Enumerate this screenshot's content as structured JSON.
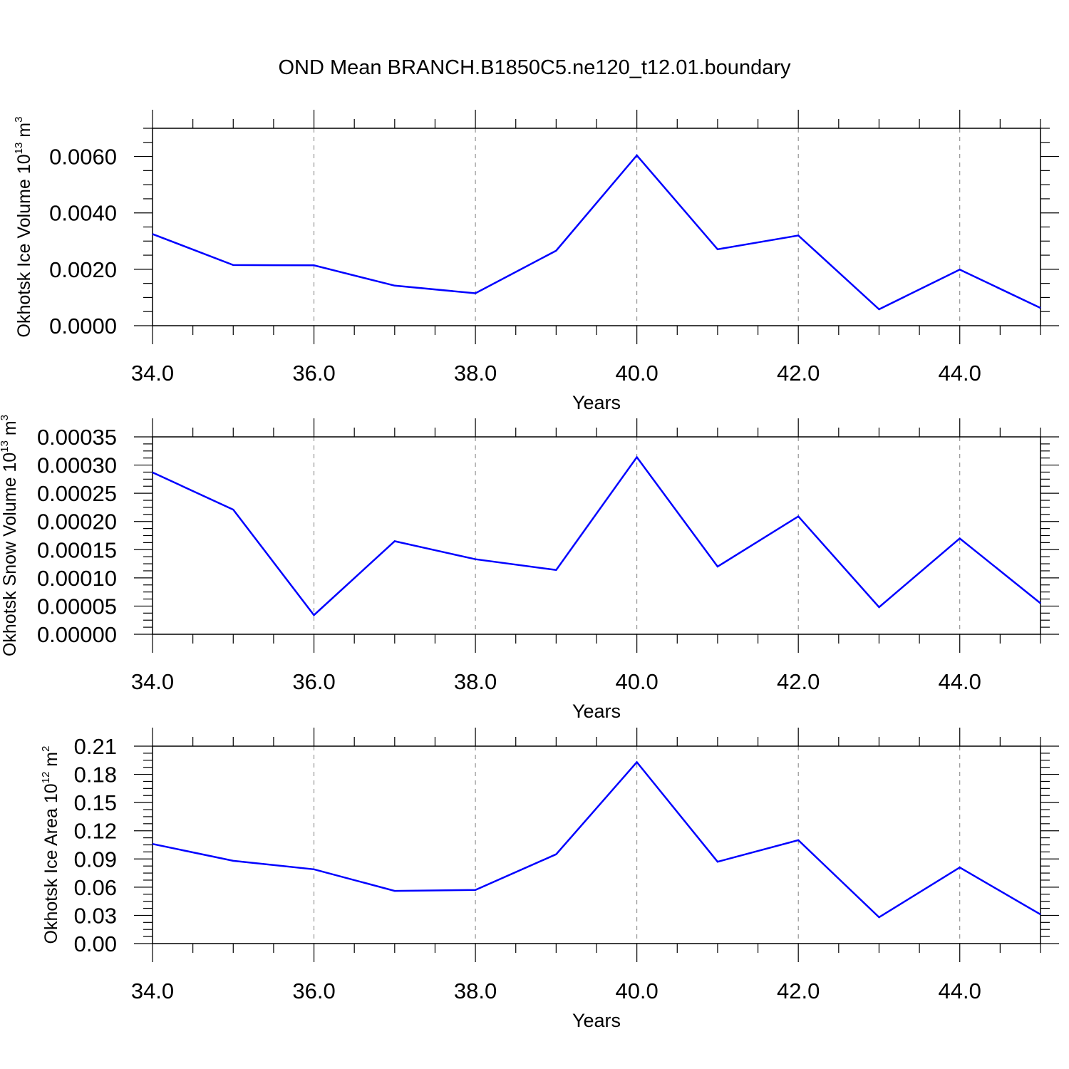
{
  "chart_data": {
    "title": "OND Mean BRANCH.B1850C5.ne120_t12.01.boundary",
    "panels": [
      {
        "type": "line",
        "ylabel": {
          "main": "Okhotsk Ice Volume 10",
          "exp": "13",
          "unit": " m",
          "unit_exp": "3"
        },
        "xlabel": "Years",
        "xlim": [
          34,
          45
        ],
        "ylim": [
          0,
          0.007
        ],
        "x_ticks": [
          "34.0",
          "36.0",
          "38.0",
          "40.0",
          "42.0",
          "44.0"
        ],
        "x_tick_values": [
          34,
          36,
          38,
          40,
          42,
          44
        ],
        "y_ticks": [
          "0.0000",
          "0.0020",
          "0.0040",
          "0.0060"
        ],
        "y_tick_values": [
          0,
          0.002,
          0.004,
          0.006
        ],
        "x": [
          34,
          35,
          36,
          37,
          38,
          39,
          40,
          41,
          42,
          43,
          44,
          45
        ],
        "y": [
          0.00325,
          0.00215,
          0.00214,
          0.00142,
          0.00115,
          0.00266,
          0.00604,
          0.00271,
          0.0032,
          0.00058,
          0.00199,
          0.00063
        ],
        "color": "#0000ff",
        "grid": "vertical dashed at major x ticks"
      },
      {
        "type": "line",
        "ylabel": {
          "main": "Okhotsk Snow Volume 10",
          "exp": "13",
          "unit": " m",
          "unit_exp": "3"
        },
        "xlabel": "Years",
        "xlim": [
          34,
          45
        ],
        "ylim": [
          0,
          0.00035
        ],
        "x_ticks": [
          "34.0",
          "36.0",
          "38.0",
          "40.0",
          "42.0",
          "44.0"
        ],
        "x_tick_values": [
          34,
          36,
          38,
          40,
          42,
          44
        ],
        "y_ticks": [
          "0.00000",
          "0.00005",
          "0.00010",
          "0.00015",
          "0.00020",
          "0.00025",
          "0.00030",
          "0.00035"
        ],
        "y_tick_values": [
          0,
          5e-05,
          0.0001,
          0.00015,
          0.0002,
          0.00025,
          0.0003,
          0.00035
        ],
        "x": [
          34,
          35,
          36,
          37,
          38,
          39,
          40,
          41,
          42,
          43,
          44,
          45
        ],
        "y": [
          0.000287,
          0.000221,
          3.4e-05,
          0.000165,
          0.000133,
          0.000114,
          0.000314,
          0.00012,
          0.000209,
          4.8e-05,
          0.00017,
          5.5e-05
        ],
        "color": "#0000ff",
        "grid": "vertical dashed at major x ticks"
      },
      {
        "type": "line",
        "ylabel": {
          "main": "Okhotsk Ice Area 10",
          "exp": "12",
          "unit": " m",
          "unit_exp": "2"
        },
        "xlabel": "Years",
        "xlim": [
          34,
          45
        ],
        "ylim": [
          0,
          0.21
        ],
        "x_ticks": [
          "34.0",
          "36.0",
          "38.0",
          "40.0",
          "42.0",
          "44.0"
        ],
        "x_tick_values": [
          34,
          36,
          38,
          40,
          42,
          44
        ],
        "y_ticks": [
          "0.00",
          "0.03",
          "0.06",
          "0.09",
          "0.12",
          "0.15",
          "0.18",
          "0.21"
        ],
        "y_tick_values": [
          0,
          0.03,
          0.06,
          0.09,
          0.12,
          0.15,
          0.18,
          0.21
        ],
        "x": [
          34,
          35,
          36,
          37,
          38,
          39,
          40,
          41,
          42,
          43,
          44,
          45
        ],
        "y": [
          0.106,
          0.088,
          0.079,
          0.056,
          0.057,
          0.095,
          0.193,
          0.087,
          0.11,
          0.028,
          0.081,
          0.031
        ],
        "color": "#0000ff",
        "grid": "vertical dashed at major x ticks"
      }
    ]
  }
}
